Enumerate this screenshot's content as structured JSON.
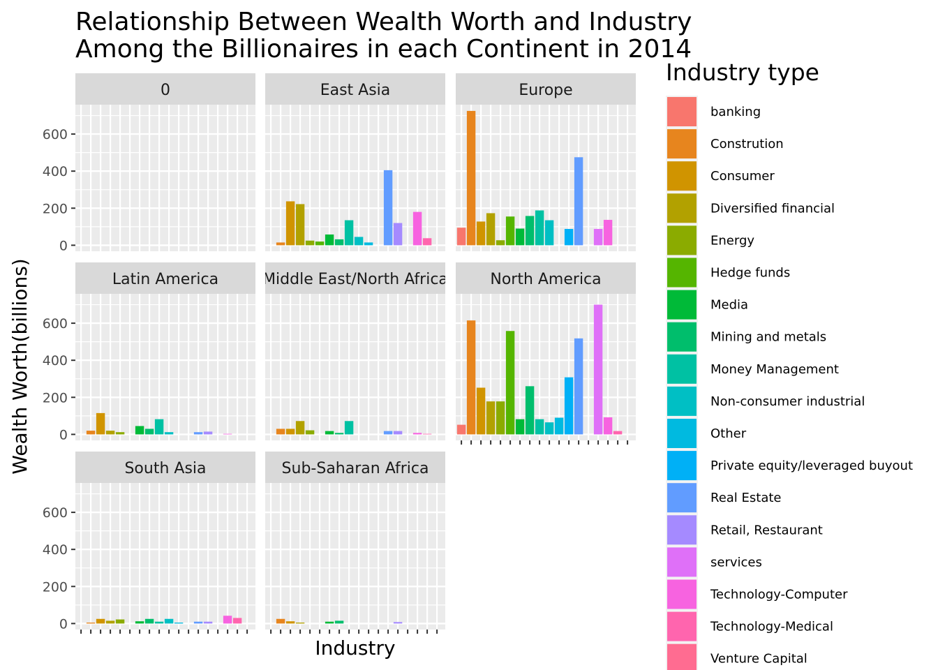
{
  "chart_data": {
    "type": "bar",
    "title": [
      "Relationship Between Wealth Worth and Industry",
      "Among the Billionaires in each Continent in 2014"
    ],
    "xlabel": "Industry",
    "ylabel": "Wealth Worth(billions)",
    "ylim": [
      0,
      720
    ],
    "yticks": [
      0,
      200,
      400,
      600
    ],
    "facet_layout": "3 columns x 3 rows",
    "legend": {
      "title": "Industry type",
      "placement": "right"
    },
    "categories": [
      "banking",
      "Constrution",
      "Consumer",
      "Diversified financial",
      "Energy",
      "Hedge funds",
      "Media",
      "Mining and metals",
      "Money Management",
      "Non-consumer industrial",
      "Other",
      "Private equity/leveraged buyout",
      "Real Estate",
      "Retail, Restaurant",
      "services",
      "Technology-Computer",
      "Technology-Medical",
      "Venture Capital"
    ],
    "colors": [
      "#F8766D",
      "#E7851E",
      "#D09400",
      "#B2A100",
      "#8BAB00",
      "#55B500",
      "#00BA38",
      "#00BE6C",
      "#00C1A3",
      "#00BFC4",
      "#00BAE0",
      "#00B0F6",
      "#619CFF",
      "#A58AFF",
      "#DF70F8",
      "#F763E0",
      "#FF65AE",
      "#FF6C91"
    ],
    "panels": [
      {
        "name": "0",
        "values": [
          0,
          0,
          0,
          0,
          0,
          0,
          0,
          0,
          0,
          0,
          0,
          0,
          0,
          0,
          0,
          0,
          0,
          0
        ]
      },
      {
        "name": "East Asia",
        "values": [
          0,
          15,
          237,
          222,
          25,
          20,
          58,
          32,
          135,
          45,
          15,
          0,
          405,
          120,
          0,
          180,
          38,
          0
        ]
      },
      {
        "name": "Europe",
        "values": [
          95,
          725,
          128,
          173,
          27,
          155,
          90,
          158,
          188,
          135,
          0,
          88,
          475,
          0,
          88,
          137,
          0,
          0
        ]
      },
      {
        "name": "Latin America",
        "values": [
          0,
          20,
          115,
          20,
          12,
          0,
          45,
          30,
          82,
          12,
          0,
          0,
          12,
          15,
          0,
          3,
          0,
          0
        ]
      },
      {
        "name": "Middle East/North Africa",
        "values": [
          0,
          30,
          30,
          72,
          22,
          0,
          18,
          8,
          72,
          0,
          0,
          0,
          18,
          18,
          0,
          8,
          3,
          0
        ]
      },
      {
        "name": "North America",
        "values": [
          52,
          615,
          252,
          178,
          178,
          558,
          82,
          260,
          82,
          65,
          90,
          308,
          518,
          0,
          700,
          92,
          18,
          0
        ]
      },
      {
        "name": "South Asia",
        "values": [
          0,
          5,
          25,
          15,
          22,
          0,
          12,
          25,
          10,
          25,
          5,
          0,
          10,
          10,
          0,
          42,
          30,
          0
        ]
      },
      {
        "name": "Sub-Saharan Africa",
        "values": [
          0,
          25,
          12,
          5,
          0,
          0,
          10,
          15,
          0,
          0,
          0,
          0,
          0,
          8,
          0,
          0,
          0,
          0
        ]
      }
    ]
  }
}
